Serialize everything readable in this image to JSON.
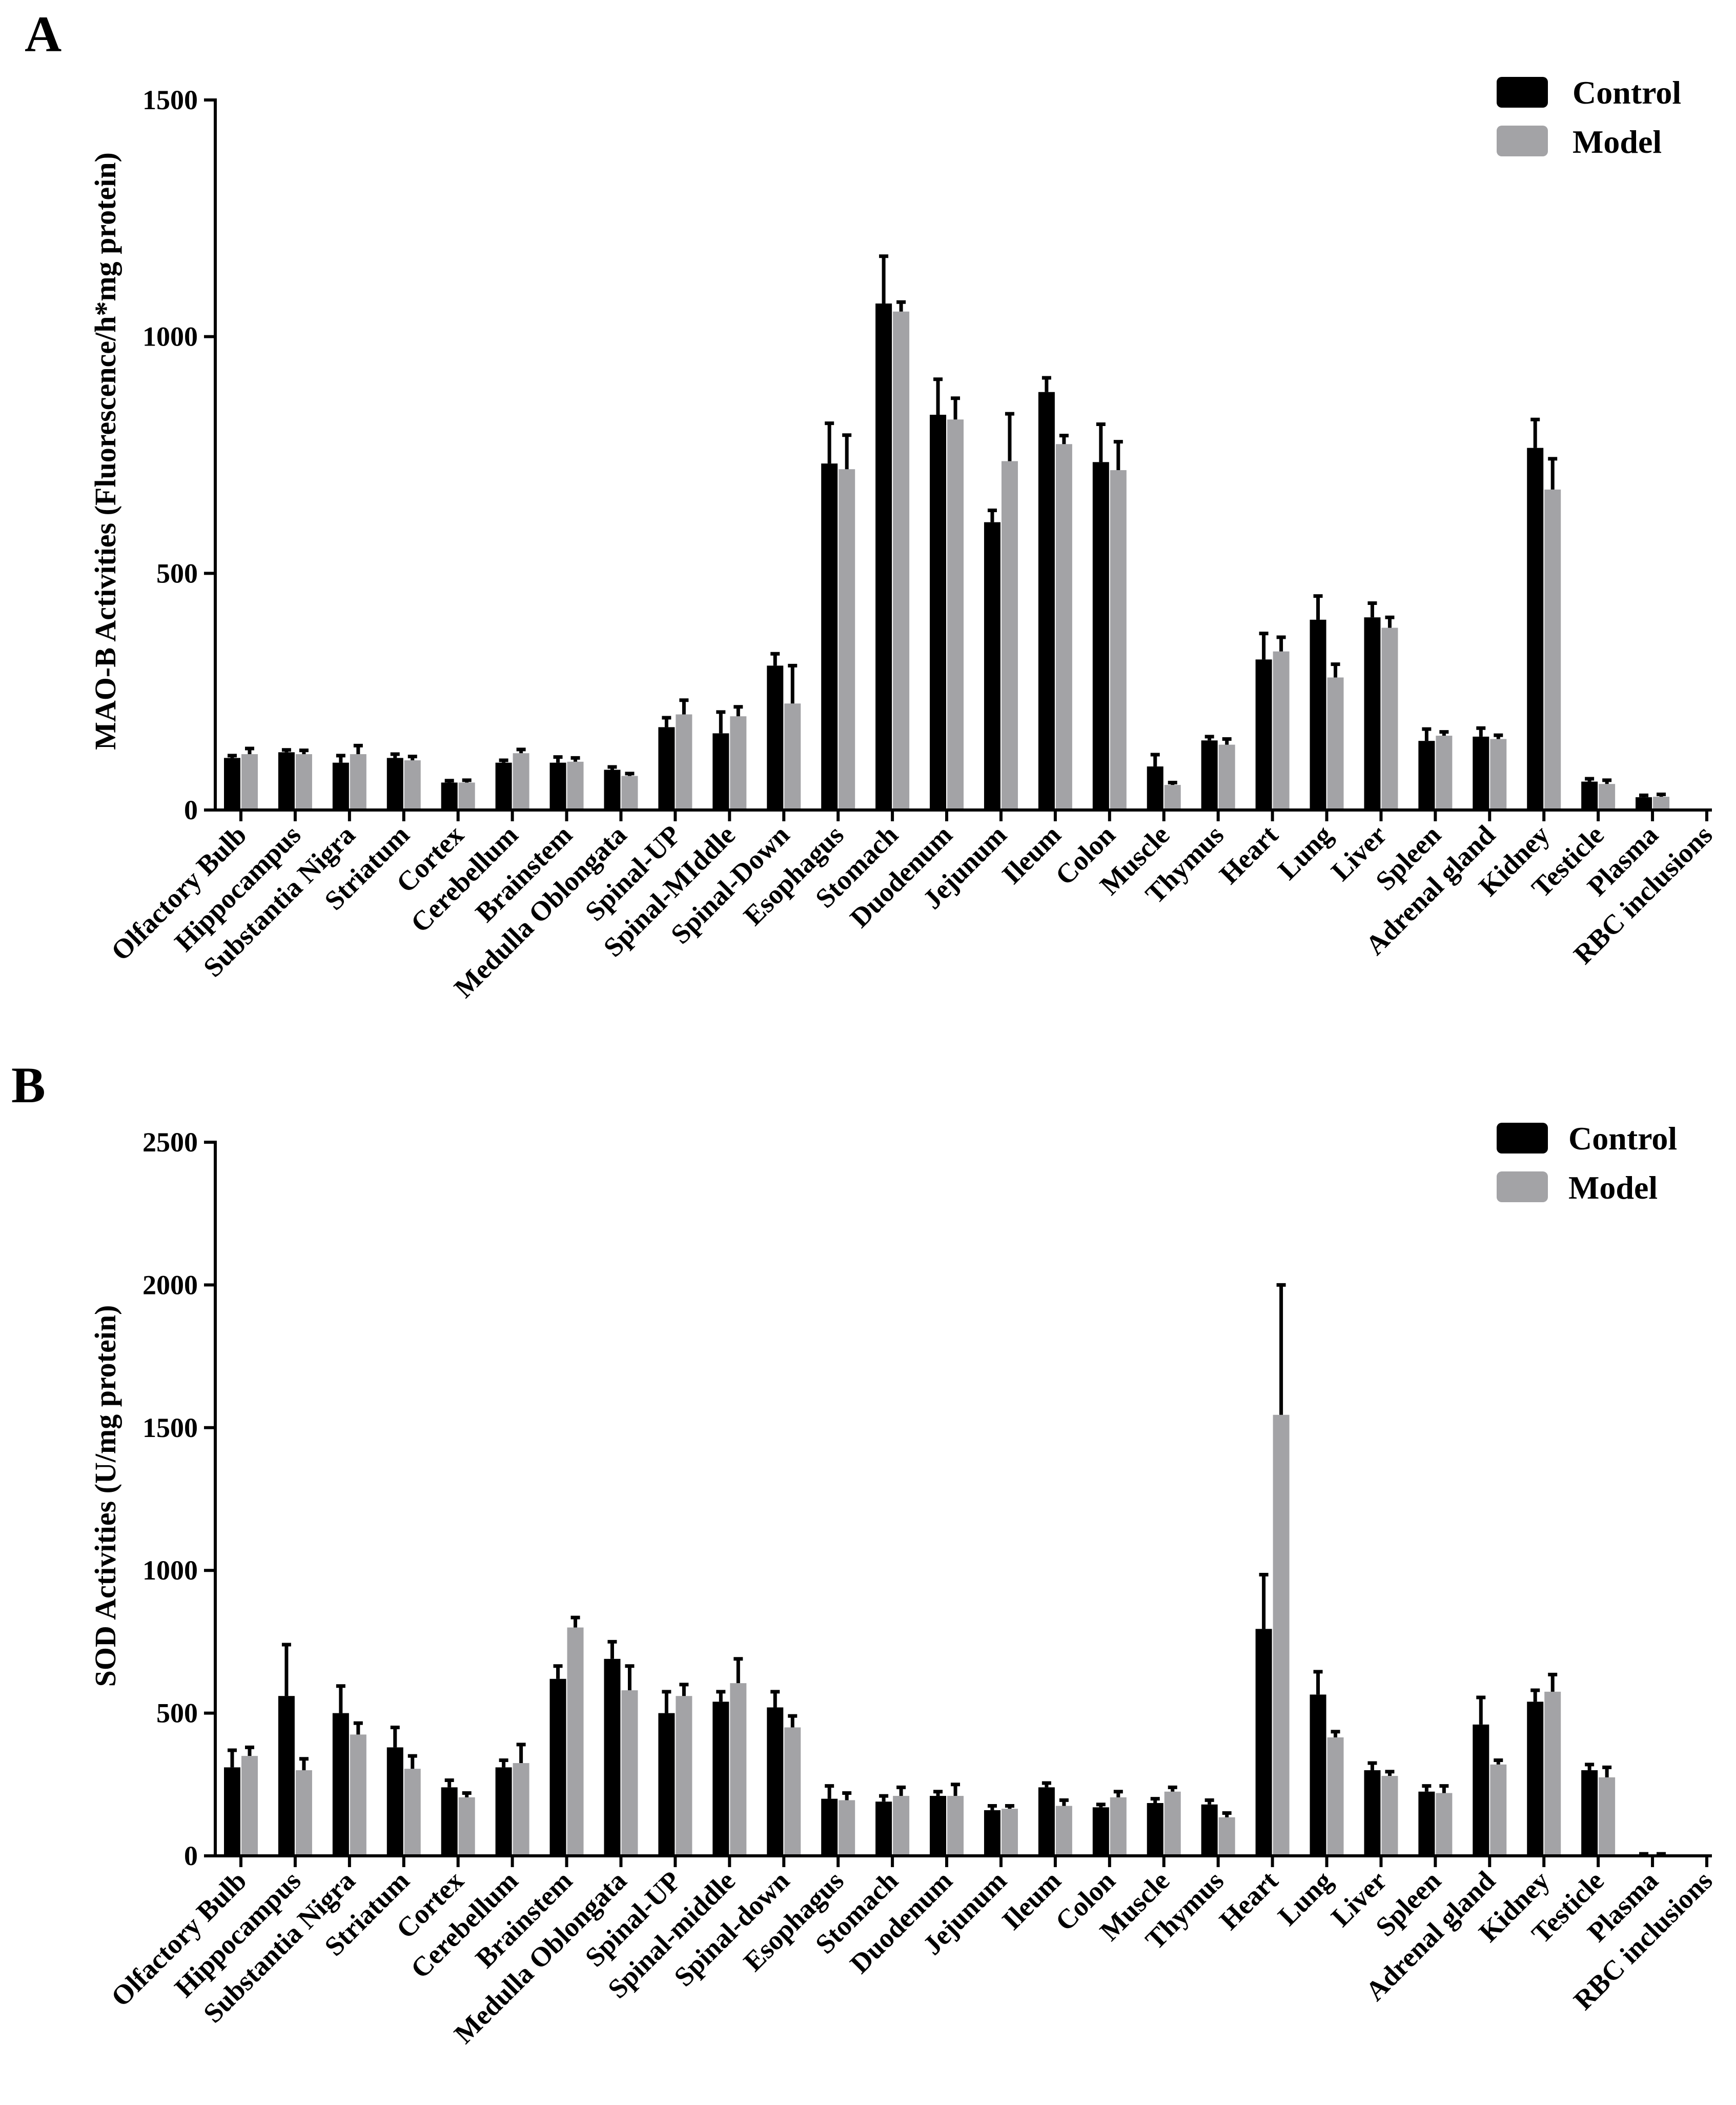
{
  "colors": {
    "control": "#000000",
    "model": "#a3a3a6",
    "axis": "#000000"
  },
  "chart_data": [
    {
      "panel_label": "A",
      "type": "bar",
      "ylabel": "MAO-B Activities (Fluorescence/h*mg protein)",
      "xlabel": "",
      "ylim": [
        0,
        1500
      ],
      "ytick_values": [
        0,
        500,
        1000,
        1500
      ],
      "ytick_labels": [
        "0",
        "500",
        "1000",
        "1500"
      ],
      "legend": [
        "Control",
        "Model"
      ],
      "legend_position": "top-right",
      "categories": [
        "Olfactory Bulb",
        "Hippocampus",
        "Substantia Nigra",
        "Striatum",
        "Cortex",
        "Cerebellum",
        "Brainstem",
        "Medulla Oblongata",
        "Spinal-UP",
        "Spinal-MIddle",
        "Spinal-Down",
        "Esophagus",
        "Stomach",
        "Duodenum",
        "Jejunum",
        "Ileum",
        "Colon",
        "Muscle",
        "Thymus",
        "Heart",
        "Lung",
        "Liver",
        "Spleen",
        "Adrenal gland",
        "Kidney",
        "Testicle",
        "Plasma",
        "RBC inclusions"
      ],
      "series": [
        {
          "name": "Control",
          "values": [
            110,
            122,
            100,
            110,
            58,
            100,
            100,
            85,
            175,
            162,
            305,
            732,
            1070,
            835,
            608,
            883,
            735,
            92,
            147,
            318,
            402,
            407,
            146,
            155,
            765,
            60,
            27,
            0
          ],
          "errors": [
            5,
            5,
            15,
            8,
            4,
            5,
            12,
            6,
            20,
            45,
            25,
            85,
            100,
            75,
            25,
            30,
            80,
            25,
            8,
            55,
            50,
            30,
            25,
            18,
            60,
            6,
            4,
            0
          ]
        },
        {
          "name": "Model",
          "values": [
            118,
            118,
            118,
            105,
            58,
            120,
            102,
            72,
            202,
            198,
            225,
            720,
            1053,
            825,
            737,
            773,
            718,
            53,
            138,
            335,
            280,
            385,
            157,
            150,
            677,
            55,
            28,
            0
          ],
          "errors": [
            12,
            8,
            18,
            8,
            5,
            8,
            8,
            5,
            30,
            20,
            80,
            72,
            20,
            45,
            100,
            18,
            60,
            5,
            12,
            30,
            28,
            22,
            8,
            8,
            65,
            8,
            5,
            0
          ]
        }
      ]
    },
    {
      "panel_label": "B",
      "type": "bar",
      "ylabel": "SOD Activities (U/mg protein)",
      "xlabel": "",
      "ylim": [
        0,
        2500
      ],
      "ytick_values": [
        0,
        500,
        1000,
        1500,
        2000,
        2500
      ],
      "ytick_labels": [
        "0",
        "500",
        "1000",
        "1500",
        "2000",
        "2500"
      ],
      "legend": [
        "Control",
        "Model"
      ],
      "legend_position": "top-right",
      "categories": [
        "Olfactory Bulb",
        "Hippocampus",
        "Substantia Nigra",
        "Striatum",
        "Cortex",
        "Cerebellum",
        "Brainstem",
        "Medulla Oblongata",
        "Spinal-UP",
        "Spinal-middle",
        "Spinal-down",
        "Esophagus",
        "Stomach",
        "Duodenum",
        "Jejunum",
        "Ileum",
        "Colon",
        "Muscle",
        "Thymus",
        "Heart",
        "Lung",
        "Liver",
        "Spleen",
        "Adrenal gland",
        "Kidney",
        "Testicle",
        "Plasma",
        "RBC inclusions"
      ],
      "series": [
        {
          "name": "Control",
          "values": [
            310,
            560,
            500,
            380,
            240,
            310,
            620,
            690,
            500,
            540,
            520,
            200,
            190,
            210,
            160,
            240,
            170,
            185,
            180,
            795,
            565,
            300,
            225,
            460,
            540,
            300,
            5,
            0
          ],
          "errors": [
            60,
            180,
            95,
            70,
            25,
            25,
            45,
            60,
            75,
            35,
            55,
            45,
            20,
            15,
            15,
            15,
            10,
            15,
            15,
            190,
            80,
            25,
            20,
            95,
            40,
            20,
            2,
            0
          ]
        },
        {
          "name": "Model",
          "values": [
            350,
            300,
            425,
            305,
            205,
            325,
            800,
            580,
            560,
            605,
            450,
            195,
            210,
            210,
            165,
            175,
            205,
            225,
            135,
            1545,
            415,
            280,
            220,
            320,
            575,
            275,
            5,
            0
          ],
          "errors": [
            30,
            40,
            40,
            45,
            15,
            65,
            35,
            85,
            40,
            85,
            40,
            25,
            30,
            40,
            10,
            20,
            20,
            15,
            15,
            455,
            20,
            15,
            25,
            15,
            60,
            35,
            2,
            0
          ]
        }
      ]
    }
  ]
}
